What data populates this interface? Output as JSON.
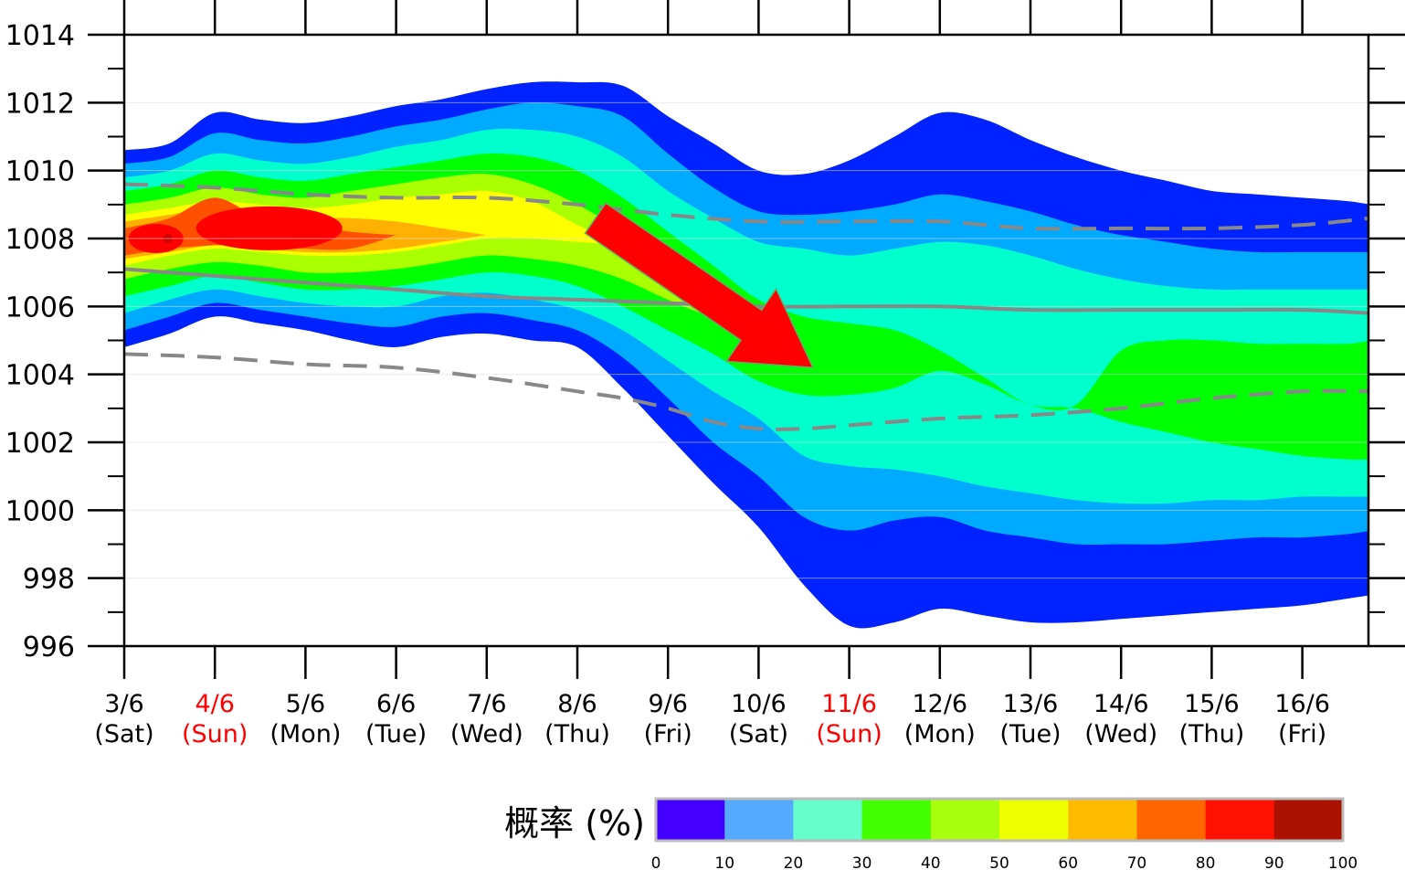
{
  "chart_data": {
    "type": "heatmap",
    "title": "",
    "xlabel": "",
    "ylabel": "",
    "ylim": [
      996,
      1014
    ],
    "y_ticks": [
      "996",
      "998",
      "1000",
      "1002",
      "1004",
      "1006",
      "1008",
      "1010",
      "1012",
      "1014"
    ],
    "x_categories": [
      {
        "date": "3/6",
        "day": "(Sat)",
        "weekend": false
      },
      {
        "date": "4/6",
        "day": "(Sun)",
        "weekend": true
      },
      {
        "date": "5/6",
        "day": "(Mon)",
        "weekend": false
      },
      {
        "date": "6/6",
        "day": "(Tue)",
        "weekend": false
      },
      {
        "date": "7/6",
        "day": "(Wed)",
        "weekend": false
      },
      {
        "date": "8/6",
        "day": "(Thu)",
        "weekend": false
      },
      {
        "date": "9/6",
        "day": "(Fri)",
        "weekend": false
      },
      {
        "date": "10/6",
        "day": "(Sat)",
        "weekend": false
      },
      {
        "date": "11/6",
        "day": "(Sun)",
        "weekend": true
      },
      {
        "date": "12/6",
        "day": "(Mon)",
        "weekend": false
      },
      {
        "date": "13/6",
        "day": "(Tue)",
        "weekend": false
      },
      {
        "date": "14/6",
        "day": "(Wed)",
        "weekend": false
      },
      {
        "date": "15/6",
        "day": "(Thu)",
        "weekend": false
      },
      {
        "date": "16/6",
        "day": "(Fri)",
        "weekend": false
      }
    ],
    "x_end_fraction": 13.75,
    "probability_bands": {
      "x": [
        0,
        0.5,
        1,
        1.5,
        2,
        2.5,
        3,
        3.5,
        4,
        4.5,
        5,
        5.5,
        6,
        6.5,
        7,
        7.5,
        8,
        8.5,
        9,
        9.5,
        10,
        10.5,
        11,
        11.5,
        12,
        12.5,
        13,
        13.5,
        13.75
      ],
      "bands": [
        {
          "level": 10,
          "upper": [
            1010.6,
            1010.8,
            1011.7,
            1011.5,
            1011.4,
            1011.6,
            1011.9,
            1012.1,
            1012.4,
            1012.6,
            1012.6,
            1012.5,
            1011.6,
            1010.8,
            1010.0,
            1009.9,
            1010.3,
            1011.0,
            1011.7,
            1011.5,
            1010.9,
            1010.4,
            1010.0,
            1009.7,
            1009.4,
            1009.3,
            1009.2,
            1009.1,
            1009.0
          ],
          "lower": [
            1004.8,
            1005.2,
            1005.7,
            1005.5,
            1005.3,
            1005.0,
            1004.8,
            1005.1,
            1005.2,
            1005.0,
            1004.8,
            1003.6,
            1002.2,
            1000.8,
            999.5,
            997.8,
            996.6,
            996.7,
            997.1,
            996.9,
            996.7,
            996.7,
            996.8,
            996.9,
            997.0,
            997.1,
            997.2,
            997.4,
            997.5
          ]
        },
        {
          "level": 20,
          "upper": [
            1010.2,
            1010.4,
            1011.1,
            1010.9,
            1010.8,
            1011.0,
            1011.3,
            1011.5,
            1011.8,
            1012.0,
            1011.9,
            1011.6,
            1010.5,
            1009.5,
            1008.8,
            1008.7,
            1008.8,
            1009.0,
            1009.3,
            1009.1,
            1008.8,
            1008.4,
            1008.1,
            1007.9,
            1007.7,
            1007.6,
            1007.6,
            1007.6,
            1007.6
          ],
          "lower": [
            1005.3,
            1005.7,
            1006.1,
            1005.9,
            1005.7,
            1005.5,
            1005.4,
            1005.7,
            1005.8,
            1005.6,
            1005.3,
            1004.5,
            1003.3,
            1002.0,
            1001.0,
            999.8,
            999.4,
            999.7,
            999.8,
            999.4,
            999.2,
            999.0,
            999.0,
            999.0,
            999.1,
            999.2,
            999.2,
            999.3,
            999.4
          ]
        },
        {
          "level": 30,
          "upper": [
            1009.8,
            1010.0,
            1010.5,
            1010.3,
            1010.2,
            1010.4,
            1010.7,
            1010.9,
            1011.2,
            1011.2,
            1011.0,
            1010.4,
            1009.4,
            1008.6,
            1007.9,
            1007.7,
            1007.5,
            1007.7,
            1007.9,
            1007.8,
            1007.5,
            1007.1,
            1006.8,
            1006.6,
            1006.5,
            1006.5,
            1006.5,
            1006.5,
            1006.5
          ],
          "lower": [
            1005.8,
            1006.2,
            1006.5,
            1006.3,
            1006.1,
            1006.0,
            1006.0,
            1006.3,
            1006.4,
            1006.2,
            1005.9,
            1005.3,
            1004.4,
            1003.5,
            1002.7,
            1001.6,
            1001.3,
            1001.2,
            1001.0,
            1000.7,
            1000.5,
            1000.3,
            1000.2,
            1000.2,
            1000.3,
            1000.3,
            1000.4,
            1000.4,
            1000.4
          ]
        },
        {
          "level": 40,
          "upper": [
            1009.4,
            1009.6,
            1010.0,
            1009.8,
            1009.7,
            1009.9,
            1010.1,
            1010.3,
            1010.5,
            1010.4,
            1010.0,
            1009.2,
            1008.2,
            1007.2,
            1006.2,
            1005.7,
            1005.5,
            1005.3,
            1004.7,
            1003.9,
            1003.1,
            1003.1,
            1004.7,
            1005.0,
            1005.0,
            1004.9,
            1004.9,
            1004.9,
            1005.0
          ],
          "lower": [
            1006.3,
            1006.6,
            1006.9,
            1006.7,
            1006.5,
            1006.5,
            1006.6,
            1006.8,
            1007.0,
            1006.9,
            1006.6,
            1006.0,
            1005.3,
            1004.6,
            1003.8,
            1003.4,
            1003.4,
            1003.6,
            1004.1,
            1003.7,
            1003.1,
            1003.0,
            1002.6,
            1002.3,
            1002.0,
            1001.8,
            1001.6,
            1001.5,
            1001.5
          ]
        },
        {
          "level": 50,
          "upper": [
            1009.0,
            1009.2,
            1009.5,
            1009.3,
            1009.2,
            1009.4,
            1009.6,
            1009.8,
            1009.9,
            1009.6,
            1009.0,
            1008.2,
            1007.2,
            1006.3,
            1005.6
          ],
          "lower": [
            1006.8,
            1007.1,
            1007.3,
            1007.2,
            1007.0,
            1007.0,
            1007.1,
            1007.3,
            1007.5,
            1007.4,
            1007.2,
            1006.8,
            1006.2,
            1005.7,
            1005.6
          ]
        },
        {
          "level": 60,
          "upper": [
            1008.7,
            1008.9,
            1009.1,
            1009.0,
            1008.9,
            1009.0,
            1009.2,
            1009.3,
            1009.4,
            1009.1,
            1008.4,
            1007.8
          ],
          "lower": [
            1007.2,
            1007.5,
            1007.7,
            1007.6,
            1007.5,
            1007.5,
            1007.6,
            1007.8,
            1008.0,
            1008.0,
            1007.9,
            1007.8
          ]
        },
        {
          "level": 70,
          "upper": [
            1008.5,
            1008.7,
            1008.9,
            1008.7,
            1008.6,
            1008.6,
            1008.5,
            1008.3,
            1008.1
          ],
          "lower": [
            1007.4,
            1007.6,
            1007.8,
            1007.7,
            1007.6,
            1007.6,
            1007.7,
            1007.9,
            1008.1
          ]
        },
        {
          "level": 80,
          "upper": [
            1008.3,
            1008.6,
            1009.2,
            1008.6,
            1008.4,
            1008.2,
            1008.1
          ],
          "lower": [
            1007.5,
            1007.7,
            1007.8,
            1007.8,
            1007.7,
            1007.7,
            1008.1
          ]
        }
      ]
    },
    "median_line": {
      "x": [
        0,
        1,
        2,
        3,
        4,
        5,
        6,
        7,
        8,
        9,
        10,
        11,
        12,
        13,
        13.75
      ],
      "y": [
        1007.1,
        1006.9,
        1006.7,
        1006.5,
        1006.3,
        1006.2,
        1006.1,
        1006.0,
        1006.0,
        1006.0,
        1005.9,
        1005.9,
        1005.9,
        1005.9,
        1005.8
      ]
    },
    "upper_dashed": {
      "x": [
        0,
        1,
        2,
        3,
        4,
        5,
        6,
        7,
        8,
        9,
        10,
        11,
        12,
        13,
        13.75
      ],
      "y": [
        1009.6,
        1009.5,
        1009.3,
        1009.2,
        1009.2,
        1009.0,
        1008.7,
        1008.5,
        1008.5,
        1008.5,
        1008.3,
        1008.3,
        1008.3,
        1008.4,
        1008.6
      ]
    },
    "lower_dashed": {
      "x": [
        0,
        1,
        2,
        3,
        4,
        5,
        5.5,
        6,
        6.5,
        7,
        7.5,
        8,
        9,
        10,
        11,
        12,
        13,
        13.75
      ],
      "y": [
        1004.6,
        1004.5,
        1004.3,
        1004.2,
        1003.9,
        1003.5,
        1003.3,
        1003.0,
        1002.6,
        1002.4,
        1002.4,
        1002.5,
        1002.7,
        1002.8,
        1003.0,
        1003.3,
        1003.5,
        1003.5
      ]
    },
    "trend_arrow": {
      "from": {
        "x": 5.2,
        "y": 1008.6
      },
      "to": {
        "x": 7.6,
        "y": 1004.2
      },
      "color": "#ff0000"
    },
    "colorbar": {
      "title": "概率 (%)",
      "ticks": [
        "0",
        "10",
        "20",
        "30",
        "40",
        "50",
        "60",
        "70",
        "80",
        "90",
        "100"
      ],
      "colors": [
        "#4400ff",
        "#55aaff",
        "#66ffcc",
        "#44ff00",
        "#aaff11",
        "#eeff00",
        "#ffbb00",
        "#ff6600",
        "#ff1100",
        "#aa1100"
      ]
    },
    "band_colors": {
      "10": "#0022ff",
      "20": "#00aaff",
      "30": "#00ffcc",
      "40": "#00ff00",
      "50": "#aaff00",
      "60": "#ffff00",
      "70": "#ffb000",
      "80": "#ff5000"
    },
    "core_color": "#ff0000",
    "weekend_color": "#ff0000"
  }
}
